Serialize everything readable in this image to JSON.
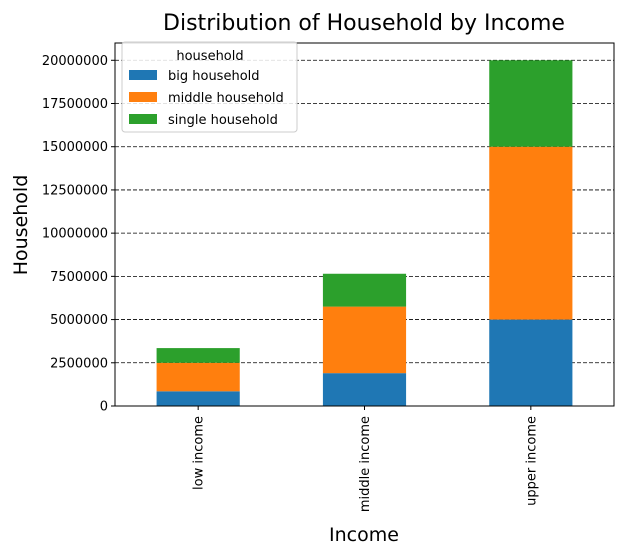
{
  "chart_data": {
    "type": "bar",
    "stacked": true,
    "title": "Distribution of Household by Income",
    "xlabel": "Income",
    "ylabel": "Household",
    "categories": [
      "low income",
      "middle income",
      "upper income"
    ],
    "series": [
      {
        "name": "big household",
        "values": [
          850000,
          1900000,
          5000000
        ],
        "color": "#1f77b4"
      },
      {
        "name": "middle household",
        "values": [
          1650000,
          3850000,
          10000000
        ],
        "color": "#ff7f0e"
      },
      {
        "name": "single household",
        "values": [
          850000,
          1900000,
          5000000
        ],
        "color": "#2ca02c"
      }
    ],
    "ylim": [
      0,
      21000000
    ],
    "yticks": [
      0,
      2500000,
      5000000,
      7500000,
      10000000,
      12500000,
      15000000,
      17500000,
      20000000
    ],
    "ytick_labels": [
      "0",
      "2500000",
      "5000000",
      "7500000",
      "10000000",
      "12500000",
      "15000000",
      "17500000",
      "20000000"
    ],
    "grid": {
      "axis": "y",
      "style": "dashed"
    },
    "legend": {
      "title": "household",
      "placement": "top-left"
    }
  }
}
